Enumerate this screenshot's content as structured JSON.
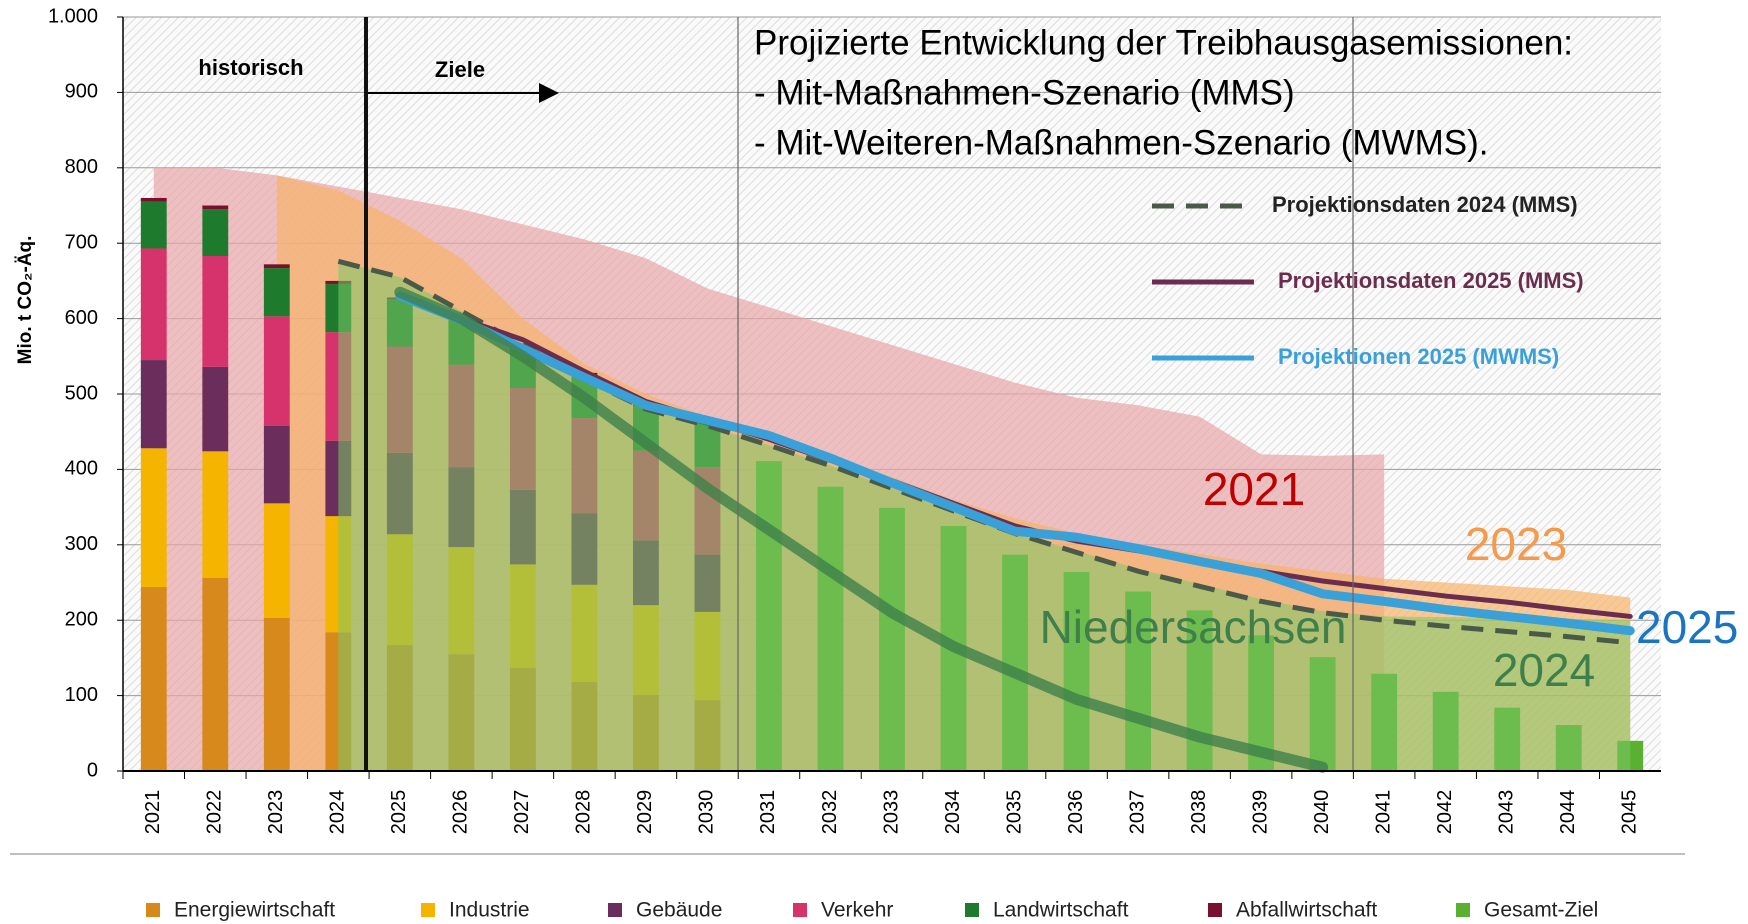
{
  "chart_data": {
    "type": "bar",
    "title": "Projizierte Entwicklung der Treibhausgasemissionen:",
    "subtitle": [
      "- Mit-Maßnahmen-Szenario (MMS)",
      "- Mit-Weiteren-Maßnahmen-Szenario (MWMS)."
    ],
    "annotations": [
      "historisch",
      "Ziele"
    ],
    "ylabel": "Mio. t CO₂-Äq.",
    "categories": [
      "2021",
      "2022",
      "2023",
      "2024",
      "2025",
      "2026",
      "2027",
      "2028",
      "2029",
      "2030",
      "2031",
      "2032",
      "2033",
      "2034",
      "2035",
      "2036",
      "2037",
      "2038",
      "2039",
      "2040",
      "2041",
      "2042",
      "2043",
      "2044",
      "2045"
    ],
    "ylim": [
      0,
      1000
    ],
    "yticks": [
      0,
      100,
      200,
      300,
      400,
      500,
      600,
      700,
      800,
      900,
      {
        "value": 1000,
        "label": "1.000"
      }
    ],
    "grid": true,
    "series": [
      {
        "name": "Energiewirtschaft",
        "type": "bar",
        "color": "#d8891c",
        "values": [
          244,
          256,
          203,
          184,
          167,
          155,
          137,
          118,
          101,
          94,
          null,
          null,
          null,
          null,
          null,
          null,
          null,
          null,
          null,
          null,
          null,
          null,
          null,
          null,
          null
        ]
      },
      {
        "name": "Industrie",
        "type": "bar",
        "color": "#f5b400",
        "values": [
          184,
          168,
          152,
          154,
          147,
          142,
          137,
          129,
          119,
          117,
          null,
          null,
          null,
          null,
          null,
          null,
          null,
          null,
          null,
          null,
          null,
          null,
          null,
          null,
          null
        ]
      },
      {
        "name": "Gebäude",
        "type": "bar",
        "color": "#6b2d5c",
        "values": [
          117,
          112,
          103,
          100,
          108,
          106,
          99,
          95,
          86,
          76,
          null,
          null,
          null,
          null,
          null,
          null,
          null,
          null,
          null,
          null,
          null,
          null,
          null,
          null,
          null
        ]
      },
      {
        "name": "Verkehr",
        "type": "bar",
        "color": "#d6336c",
        "values": [
          148,
          147,
          145,
          144,
          141,
          136,
          135,
          126,
          119,
          116,
          null,
          null,
          null,
          null,
          null,
          null,
          null,
          null,
          null,
          null,
          null,
          null,
          null,
          null,
          null
        ]
      },
      {
        "name": "Landwirtschaft",
        "type": "bar",
        "color": "#1e7b2e",
        "values": [
          62,
          62,
          64,
          64,
          63,
          59,
          57,
          58,
          59,
          59,
          null,
          null,
          null,
          null,
          null,
          null,
          null,
          null,
          null,
          null,
          null,
          null,
          null,
          null,
          null
        ]
      },
      {
        "name": "Abfallwirtschaft",
        "type": "bar",
        "color": "#7a1030",
        "values": [
          5,
          5,
          5,
          4,
          2,
          2,
          2,
          2,
          2,
          2,
          null,
          null,
          null,
          null,
          null,
          null,
          null,
          null,
          null,
          null,
          null,
          null,
          null,
          null,
          null
        ]
      },
      {
        "name": "Gesamt-Ziel",
        "type": "bar",
        "color": "#5ab030",
        "values": [
          null,
          null,
          null,
          null,
          null,
          null,
          null,
          null,
          null,
          null,
          411,
          377,
          349,
          325,
          287,
          264,
          238,
          213,
          180,
          151,
          129,
          105,
          84,
          61,
          40
        ]
      },
      {
        "name": "2021",
        "type": "area",
        "color": "#e8a5a8",
        "values": [
          800,
          800,
          790,
          775,
          760,
          745,
          725,
          705,
          680,
          640,
          615,
          590,
          565,
          540,
          515,
          495,
          485,
          470,
          420,
          418,
          420,
          null,
          null,
          null,
          null
        ]
      },
      {
        "name": "2023",
        "type": "area",
        "color": "#f7b46a",
        "values": [
          null,
          null,
          790,
          770,
          730,
          680,
          600,
          540,
          500,
          470,
          445,
          420,
          390,
          360,
          335,
          315,
          300,
          288,
          275,
          265,
          255,
          250,
          245,
          240,
          230
        ]
      },
      {
        "name": "2024",
        "type": "area",
        "color": "#7cc867",
        "values": [
          null,
          null,
          null,
          676,
          655,
          610,
          565,
          520,
          480,
          458,
          432,
          405,
          375,
          345,
          315,
          292,
          268,
          248,
          228,
          212,
          205,
          204,
          203,
          202,
          200
        ]
      },
      {
        "name": "Projektionsdaten 2024 (MMS)",
        "type": "line",
        "dash": true,
        "color": "#4a5a48",
        "values": [
          null,
          null,
          null,
          676,
          655,
          610,
          565,
          520,
          480,
          458,
          432,
          405,
          375,
          345,
          315,
          290,
          265,
          245,
          225,
          210,
          200,
          192,
          185,
          178,
          170
        ]
      },
      {
        "name": "Projektionsdaten 2025 (MMS)",
        "type": "line",
        "color": "#6b2d4e",
        "values": [
          null,
          null,
          null,
          null,
          628,
          600,
          572,
          530,
          490,
          465,
          440,
          412,
          385,
          355,
          325,
          305,
          292,
          278,
          265,
          252,
          242,
          232,
          224,
          214,
          205
        ]
      },
      {
        "name": "Projektionen 2025 (MWMS)",
        "type": "line",
        "color": "#3aa0d8",
        "label": "2025",
        "values": [
          null,
          null,
          null,
          null,
          630,
          598,
          560,
          522,
          485,
          465,
          445,
          415,
          382,
          350,
          318,
          310,
          295,
          278,
          262,
          235,
          225,
          214,
          205,
          196,
          186
        ]
      },
      {
        "name": "Niedersachsen",
        "type": "line",
        "color": "#3f7f4a",
        "values": [
          null,
          null,
          null,
          null,
          635,
          600,
          550,
          495,
          435,
          375,
          320,
          265,
          210,
          165,
          130,
          95,
          70,
          45,
          25,
          5,
          null,
          null,
          null,
          null,
          null
        ]
      }
    ]
  }
}
